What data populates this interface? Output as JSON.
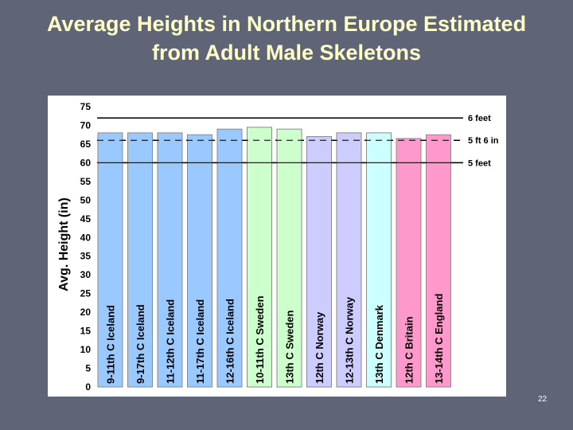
{
  "slide": {
    "title_line1": "Average Heights in Northern Europe Estimated",
    "title_line2": "from Adult Male Skeletons",
    "page_number": "22"
  },
  "colors": {
    "background": "#5f6577",
    "title": "#ffffc8",
    "iceland": "#99c9ff",
    "sweden": "#ccffcc",
    "norway": "#ccccff",
    "denmark": "#ccffff",
    "britain": "#ff99cc",
    "england": "#ff99cc"
  },
  "chart_data": {
    "type": "bar",
    "ylabel": "Avg. Height (in)",
    "xlabel": "",
    "ylim": [
      0,
      75
    ],
    "yticks": [
      0,
      5,
      10,
      15,
      20,
      25,
      30,
      35,
      40,
      45,
      50,
      55,
      60,
      65,
      70,
      75
    ],
    "categories": [
      "9-11th C Iceland",
      "9-17th C Iceland",
      "11-12th C Iceland",
      "11-17th C Iceland",
      "12-16th C Iceland",
      "10-11th C Sweden",
      "13th C Sweden",
      "12th C Norway",
      "12-13th C Norway",
      "13th C Denmark",
      "12th C Britain",
      "13-14th C England"
    ],
    "values": [
      68,
      68,
      68,
      67.5,
      69,
      69.5,
      69,
      67,
      68,
      68,
      66.5,
      67.5
    ],
    "bar_color_keys": [
      "iceland",
      "iceland",
      "iceland",
      "iceland",
      "iceland",
      "sweden",
      "sweden",
      "norway",
      "norway",
      "denmark",
      "britain",
      "england"
    ],
    "reference_lines": [
      {
        "label": "6 feet",
        "value": 72,
        "style": "solid"
      },
      {
        "label": "5 ft 6 in",
        "value": 66,
        "style": "dashed"
      },
      {
        "label": "5 feet",
        "value": 60,
        "style": "solid"
      }
    ],
    "grid": false,
    "legend": "none"
  }
}
